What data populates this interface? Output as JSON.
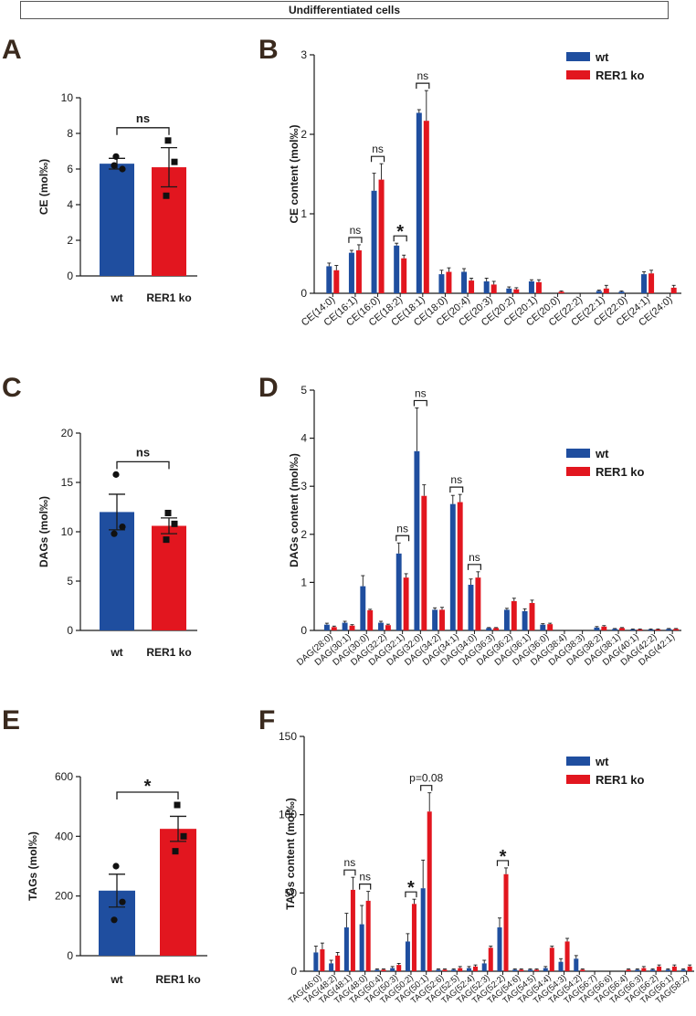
{
  "banner": "Undifferentiated cells",
  "panels": {
    "A": "A",
    "B": "B",
    "C": "C",
    "D": "D",
    "E": "E",
    "F": "F"
  },
  "colors": {
    "wt": "#1f4e9f",
    "ko": "#e2161f",
    "dark": "#1a1a1a"
  },
  "chart_data": [
    {
      "id": "A",
      "type": "bar",
      "ylabel": "CE (mol‰)",
      "ylim": [
        0,
        10
      ],
      "yticks": [
        "0",
        "2",
        "4",
        "6",
        "8",
        "10"
      ],
      "categories": [
        "wt",
        "RER1 ko"
      ],
      "values": [
        6.3,
        6.1
      ],
      "errors": [
        0.3,
        1.1
      ],
      "points": [
        [
          6.7,
          6.0,
          6.2
        ],
        [
          7.6,
          6.4,
          4.5
        ]
      ],
      "sig": "ns"
    },
    {
      "id": "B",
      "type": "bar",
      "ylabel": "CE content (mol‰)",
      "ylim": [
        0,
        3
      ],
      "yticks": [
        "0",
        "1",
        "2",
        "3"
      ],
      "legend": [
        "wt",
        "RER1 ko"
      ],
      "categories": [
        "CE(14:0)",
        "CE(16:1)",
        "CE(16:0)",
        "CE(18:2)",
        "CE(18:1)",
        "CE(18:0)",
        "CE(20:4)",
        "CE(20:3)",
        "CE(20:2)",
        "CE(20:1)",
        "CE(20:0)",
        "CE(22:2)",
        "CE(22:1)",
        "CE(22:0)",
        "CE(24:1)",
        "CE(24:0)"
      ],
      "series": [
        {
          "name": "wt",
          "values": [
            0.34,
            0.51,
            1.29,
            0.6,
            2.27,
            0.24,
            0.27,
            0.15,
            0.06,
            0.15,
            0.0,
            0.0,
            0.03,
            0.02,
            0.24,
            0.0
          ],
          "errors": [
            0.04,
            0.03,
            0.22,
            0.03,
            0.04,
            0.05,
            0.04,
            0.04,
            0.02,
            0.02,
            0.0,
            0.0,
            0.01,
            0.01,
            0.03,
            0.0
          ]
        },
        {
          "name": "RER1 ko",
          "values": [
            0.29,
            0.54,
            1.43,
            0.44,
            2.17,
            0.27,
            0.16,
            0.11,
            0.05,
            0.14,
            0.02,
            0.0,
            0.06,
            0.0,
            0.25,
            0.07
          ],
          "errors": [
            0.06,
            0.07,
            0.2,
            0.04,
            0.38,
            0.05,
            0.03,
            0.04,
            0.02,
            0.03,
            0.01,
            0.0,
            0.04,
            0.0,
            0.04,
            0.03
          ]
        }
      ],
      "annotations": [
        {
          "category": "CE(16:1)",
          "label": "ns"
        },
        {
          "category": "CE(16:0)",
          "label": "ns"
        },
        {
          "category": "CE(18:2)",
          "label": "*"
        },
        {
          "category": "CE(18:1)",
          "label": "ns"
        }
      ]
    },
    {
      "id": "C",
      "type": "bar",
      "ylabel": "DAGs (mol‰)",
      "ylim": [
        0,
        20
      ],
      "yticks": [
        "0",
        "5",
        "10",
        "15",
        "20"
      ],
      "categories": [
        "wt",
        "RER1 ko"
      ],
      "values": [
        12.0,
        10.6
      ],
      "errors": [
        1.8,
        0.8
      ],
      "points": [
        [
          15.8,
          10.5,
          9.8
        ],
        [
          11.9,
          10.8,
          9.2
        ]
      ],
      "sig": "ns"
    },
    {
      "id": "D",
      "type": "bar",
      "ylabel": "DAGs content (mol‰)",
      "ylim": [
        0,
        5
      ],
      "yticks": [
        "0",
        "1",
        "2",
        "3",
        "4",
        "5"
      ],
      "legend": [
        "wt",
        "RER1 ko"
      ],
      "categories": [
        "DAG(28:0)",
        "DAG(30:1)",
        "DAG(30:0)",
        "DAG(32:2)",
        "DAG(32:1)",
        "DAG(32:0)",
        "DAG(34:2)",
        "DAG(34:1)",
        "DAG(34:0)",
        "DAG(36:3)",
        "DAG(36:2)",
        "DAG(36:1)",
        "DAG(36:0)",
        "DAG(38:4)",
        "DAG(38:3)",
        "DAG(38:2)",
        "DAG(38:1)",
        "DAG(40:1)",
        "DAG(42:2)",
        "DAG(42:1)"
      ],
      "series": [
        {
          "name": "wt",
          "values": [
            0.12,
            0.16,
            0.92,
            0.16,
            1.6,
            3.73,
            0.43,
            2.63,
            0.95,
            0.05,
            0.43,
            0.4,
            0.12,
            0.0,
            0.0,
            0.06,
            0.03,
            0.02,
            0.02,
            0.03
          ],
          "errors": [
            0.03,
            0.03,
            0.22,
            0.03,
            0.22,
            0.9,
            0.04,
            0.18,
            0.12,
            0.01,
            0.03,
            0.05,
            0.02,
            0.0,
            0.0,
            0.02,
            0.01,
            0.01,
            0.01,
            0.01
          ]
        },
        {
          "name": "RER1 ko",
          "values": [
            0.07,
            0.1,
            0.42,
            0.11,
            1.1,
            2.8,
            0.43,
            2.67,
            1.1,
            0.05,
            0.61,
            0.57,
            0.13,
            0.0,
            0.0,
            0.08,
            0.05,
            0.02,
            0.02,
            0.03
          ],
          "errors": [
            0.02,
            0.02,
            0.02,
            0.02,
            0.08,
            0.23,
            0.05,
            0.16,
            0.12,
            0.01,
            0.06,
            0.06,
            0.02,
            0.0,
            0.0,
            0.02,
            0.01,
            0.01,
            0.01,
            0.01
          ]
        }
      ],
      "annotations": [
        {
          "category": "DAG(32:1)",
          "label": "ns"
        },
        {
          "category": "DAG(32:0)",
          "label": "ns"
        },
        {
          "category": "DAG(34:1)",
          "label": "ns"
        },
        {
          "category": "DAG(34:0)",
          "label": "ns"
        }
      ]
    },
    {
      "id": "E",
      "type": "bar",
      "ylabel": "TAGs (mol‰)",
      "ylim": [
        0,
        600
      ],
      "yticks": [
        "0",
        "200",
        "400",
        "600"
      ],
      "categories": [
        "wt",
        "RER1 ko"
      ],
      "values": [
        218,
        425
      ],
      "errors": [
        55,
        42
      ],
      "points": [
        [
          300,
          180,
          120
        ],
        [
          505,
          400,
          350
        ]
      ],
      "sig": "*"
    },
    {
      "id": "F",
      "type": "bar",
      "ylabel": "TAGs content (mol‰)",
      "ylim": [
        0,
        150
      ],
      "yticks": [
        "0",
        "50",
        "100",
        "150"
      ],
      "legend": [
        "wt",
        "RER1 ko"
      ],
      "categories": [
        "TAG(46:0)",
        "TAG(48:2)",
        "TAG(48:1)",
        "TAG(48:0)",
        "TAG(50:4)",
        "TAG(50:3)",
        "TAG(50:2)",
        "TAG(50:1)",
        "TAG(52:6)",
        "TAG(52:5)",
        "TAG(52:4)",
        "TAG(52:3)",
        "TAG(52:2)",
        "TAG(54:6)",
        "TAG(54:5)",
        "TAG(54:4)",
        "TAG(54:3)",
        "TAG(54:2)",
        "TAG(56:7)",
        "TAG(56:6)",
        "TAG(56:4)",
        "TAG(56:3)",
        "TAG(56:2)",
        "TAG(56:1)",
        "TAG(58:2)"
      ],
      "series": [
        {
          "name": "wt",
          "values": [
            12,
            5,
            28,
            30,
            1,
            2,
            19,
            53,
            1,
            1,
            2,
            5,
            28,
            1,
            1,
            2,
            6,
            8,
            0,
            0,
            0,
            1,
            1,
            1,
            1
          ],
          "errors": [
            4,
            2,
            9,
            12,
            0.5,
            1,
            5,
            18,
            0.5,
            0.5,
            1,
            2,
            6,
            0.5,
            0.5,
            1,
            2,
            2,
            0,
            0,
            0,
            0.5,
            0.5,
            0.5,
            0.5
          ]
        },
        {
          "name": "RER1 ko",
          "values": [
            14,
            10,
            52,
            45,
            1,
            4,
            43,
            102,
            1,
            2,
            3,
            15,
            62,
            1,
            1,
            15,
            19,
            1,
            0,
            0,
            1,
            2,
            3,
            3,
            3
          ],
          "errors": [
            4,
            2,
            8,
            6,
            0.5,
            1,
            3,
            12,
            0.5,
            1,
            1,
            1,
            4,
            0.5,
            0.5,
            1,
            2,
            0.5,
            0,
            0,
            0.5,
            1,
            1,
            1,
            1
          ]
        }
      ],
      "annotations": [
        {
          "category": "TAG(48:1)",
          "label": "ns"
        },
        {
          "category": "TAG(48:0)",
          "label": "ns"
        },
        {
          "category": "TAG(50:2)",
          "label": "*"
        },
        {
          "category": "TAG(50:1)",
          "label": "p=0.08"
        },
        {
          "category": "TAG(52:2)",
          "label": "*"
        }
      ]
    }
  ]
}
